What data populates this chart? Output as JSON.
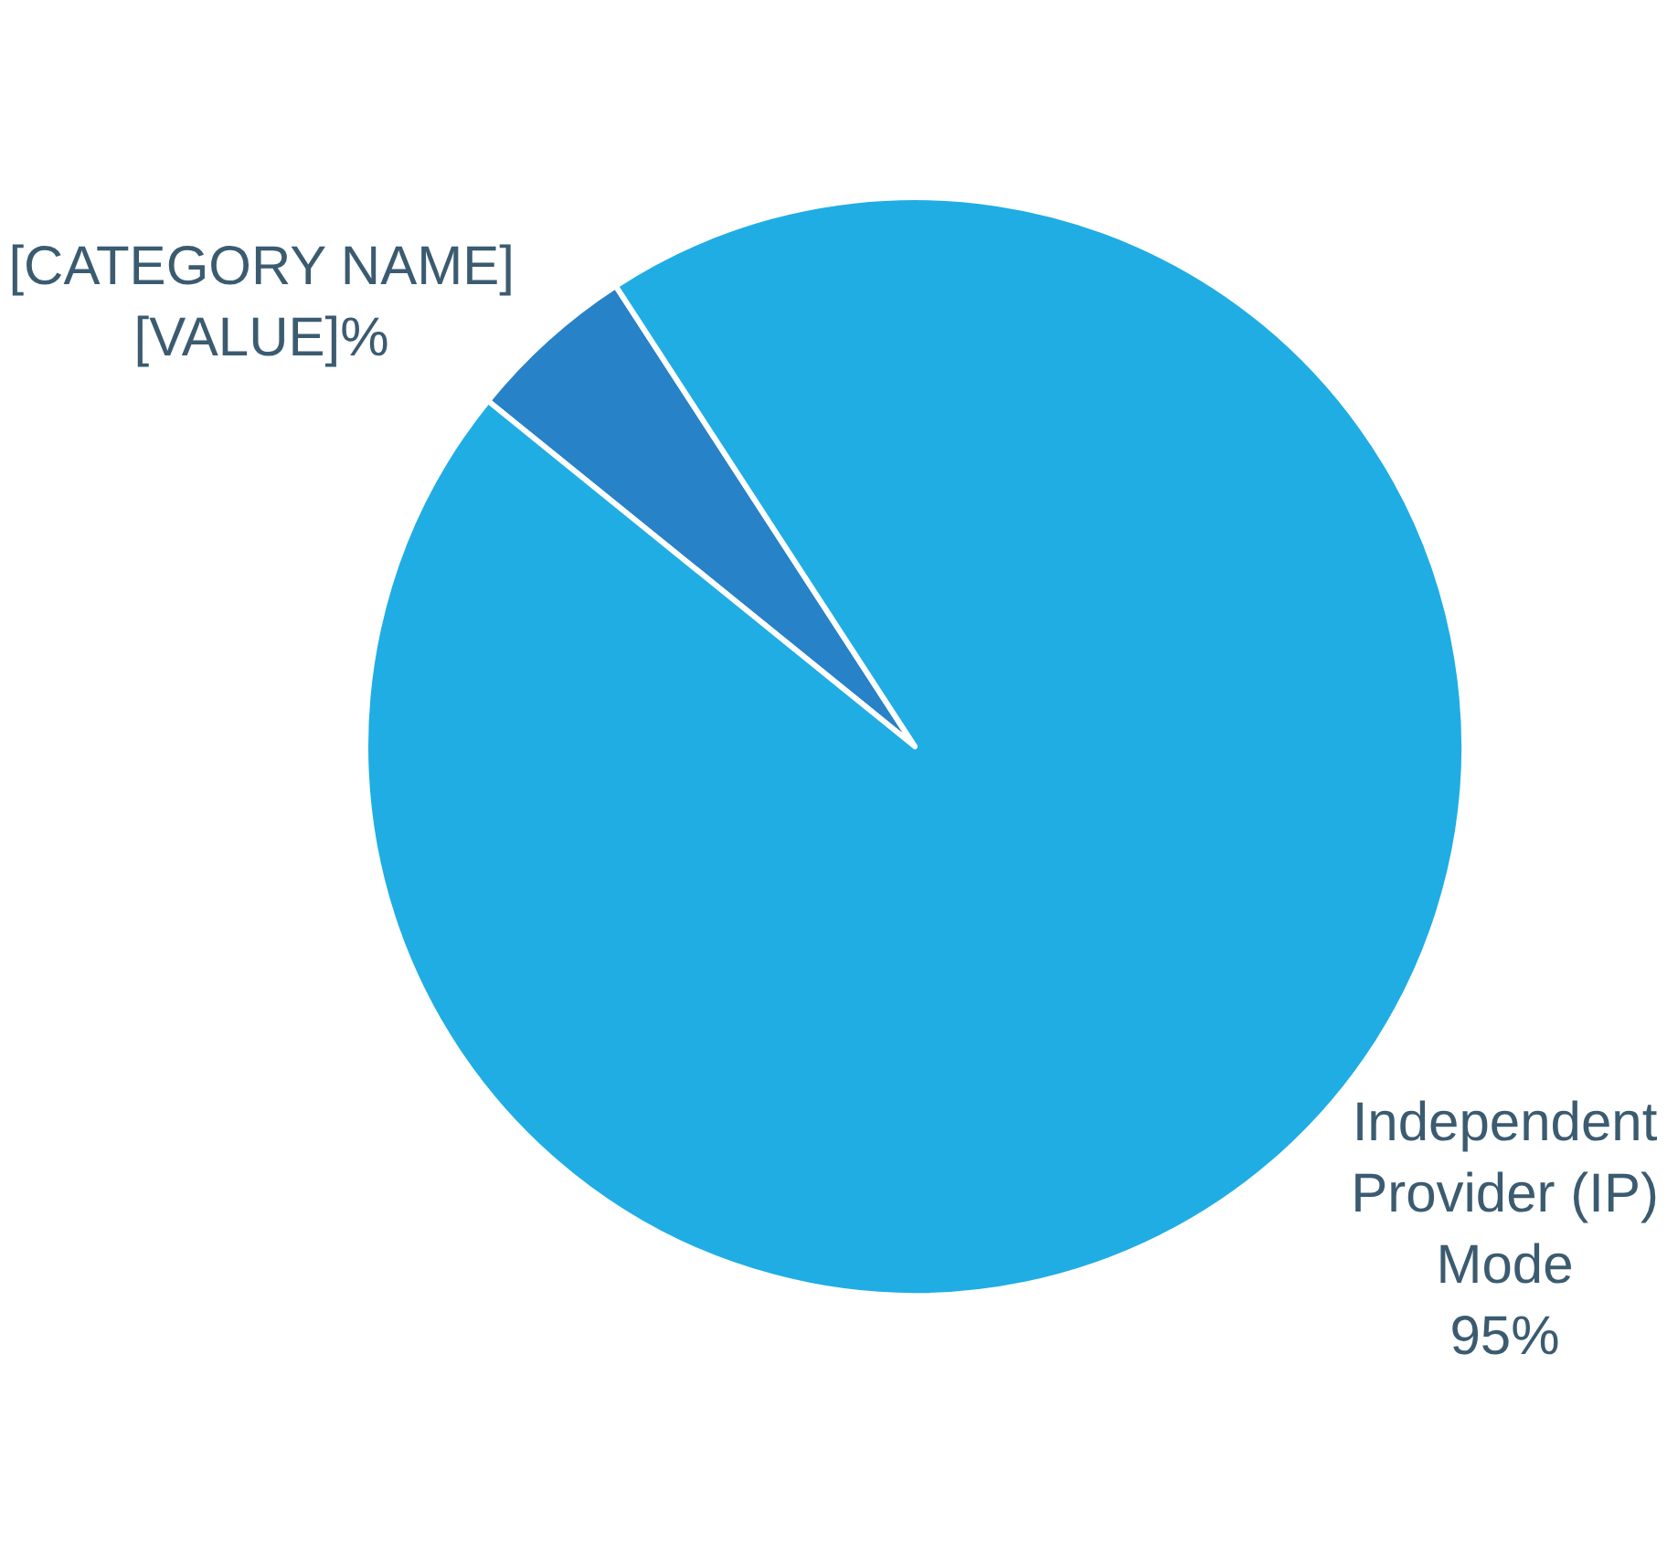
{
  "chart_data": {
    "type": "pie",
    "categories": [
      "[CATEGORY NAME]",
      "Independent Provider (IP) Mode"
    ],
    "values": [
      5,
      95
    ],
    "value_labels": [
      "[VALUE]%",
      "95%"
    ],
    "colors": [
      "#2882c8",
      "#1fade4"
    ]
  }
}
